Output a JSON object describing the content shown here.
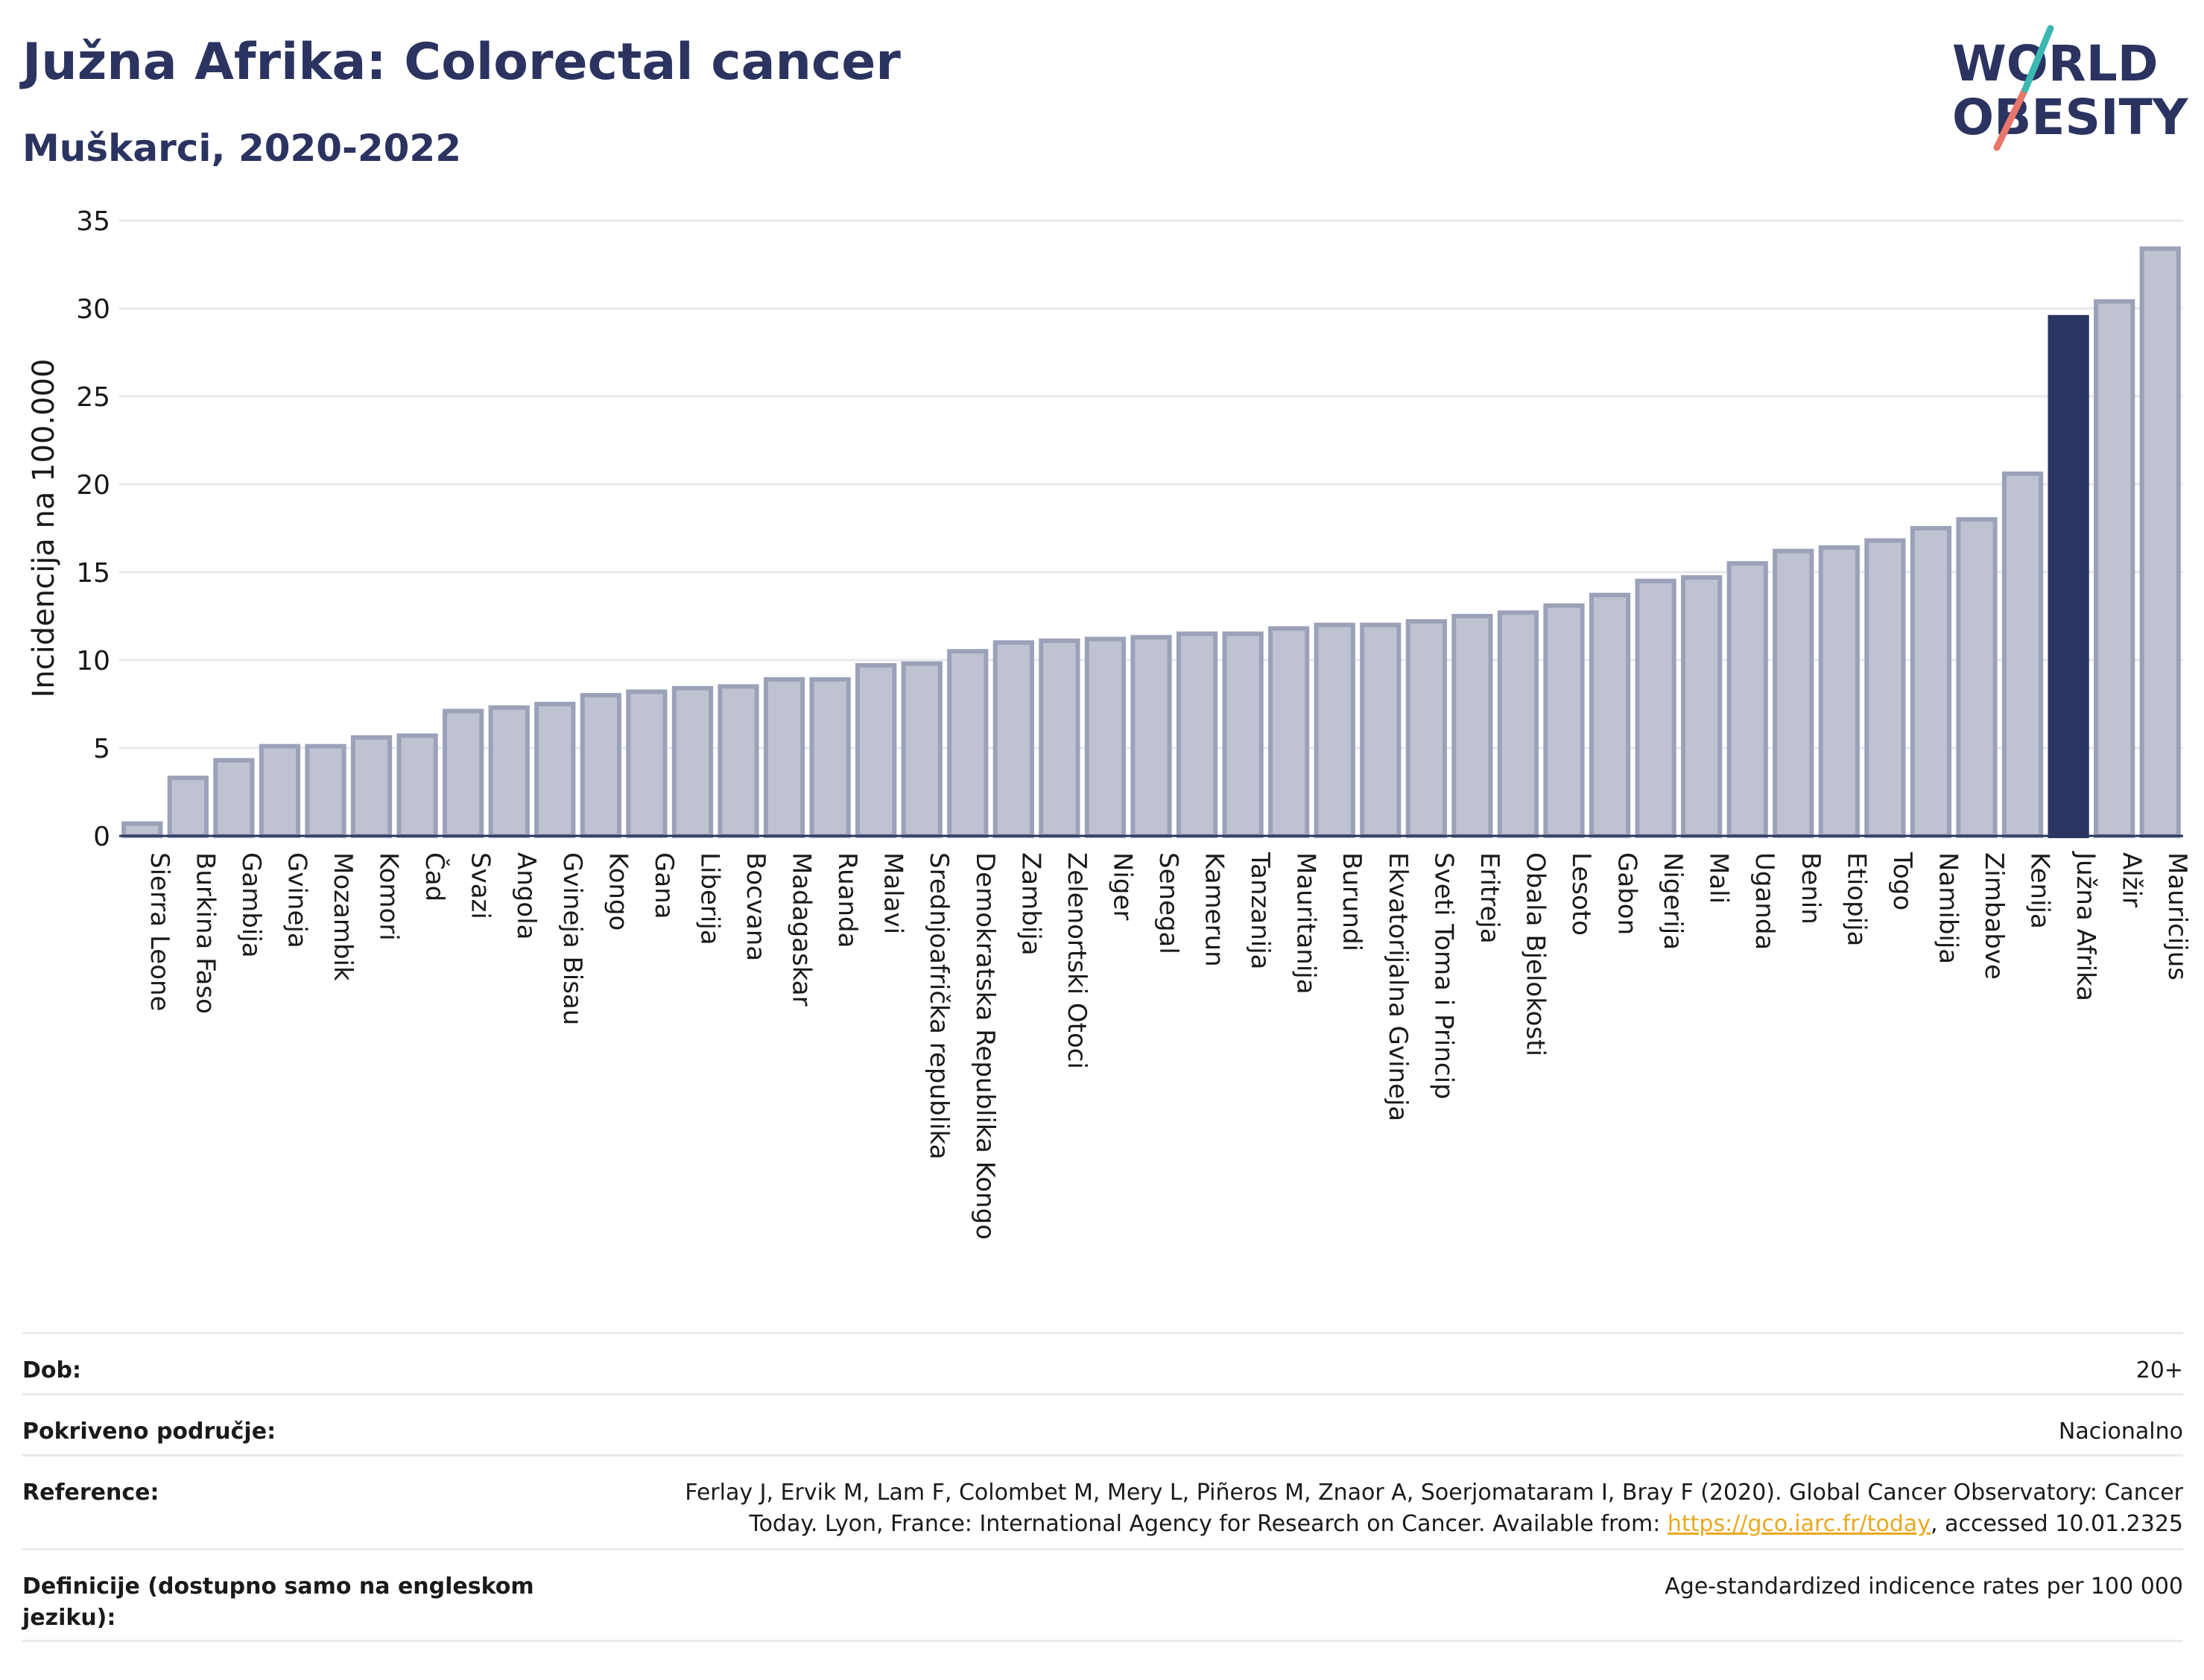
{
  "header": {
    "title": "Južna Afrika: Colorectal cancer",
    "subtitle": "Muškarci, 2020-2022"
  },
  "logo": {
    "line1": "WORLD",
    "line2": "OBESITY"
  },
  "colors": {
    "bar": "#bfc3d1",
    "bar_stroke": "#9ba1b8",
    "highlight": "#2b3561",
    "title": "#2b3360",
    "grid": "#e6e8ee",
    "link": "#e8a920"
  },
  "chart_data": {
    "type": "bar",
    "title": "Južna Afrika: Colorectal cancer",
    "ylabel": "Incidencija na 100.000",
    "xlabel": "",
    "ylim": [
      0,
      35
    ],
    "yticks": [
      0,
      5,
      10,
      15,
      20,
      25,
      30,
      35
    ],
    "grid": true,
    "highlight": "Južna Afrika",
    "categories": [
      "Sierra Leone",
      "Burkina Faso",
      "Gambija",
      "Gvineja",
      "Mozambik",
      "Komori",
      "Čad",
      "Svazi",
      "Angola",
      "Gvineja Bisau",
      "Kongo",
      "Gana",
      "Liberija",
      "Bocvana",
      "Madagaskar",
      "Ruanda",
      "Malavi",
      "Srednjoafrička republika",
      "Demokratska Republika Kongo",
      "Zambija",
      "Zelenortski Otoci",
      "Niger",
      "Senegal",
      "Kamerun",
      "Tanzanija",
      "Mauritanija",
      "Burundi",
      "Ekvatorijalna Gvineja",
      "Sveti Toma i Princip",
      "Eritreja",
      "Obala Bjelokosti",
      "Lesoto",
      "Gabon",
      "Nigerija",
      "Mali",
      "Uganda",
      "Benin",
      "Etiopija",
      "Togo",
      "Namibija",
      "Zimbabve",
      "Kenija",
      "Južna Afrika",
      "Alžir",
      "Mauricijus"
    ],
    "values": [
      0.7,
      3.3,
      4.3,
      5.1,
      5.1,
      5.6,
      5.7,
      7.1,
      7.3,
      7.5,
      8.0,
      8.2,
      8.4,
      8.5,
      8.9,
      8.9,
      9.7,
      9.8,
      10.5,
      11.0,
      11.1,
      11.2,
      11.3,
      11.5,
      11.5,
      11.8,
      12.0,
      12.0,
      12.2,
      12.5,
      12.7,
      13.1,
      13.7,
      14.5,
      14.7,
      15.5,
      16.2,
      16.4,
      16.8,
      17.5,
      18.0,
      20.6,
      29.5,
      30.4,
      33.4
    ]
  },
  "meta": {
    "age_label": "Dob:",
    "age_value": "20+",
    "coverage_label": "Pokriveno područje:",
    "coverage_value": "Nacionalno",
    "reference_label": "Reference:",
    "reference_text_1": "Ferlay J, Ervik M, Lam F, Colombet M, Mery L, Piñeros M, Znaor A, Soerjomataram I, Bray F (2020). Global Cancer Observatory: Cancer",
    "reference_text_2": "Today. Lyon, France: International Agency for Research on Cancer. Available from: ",
    "reference_link": "https://gco.iarc.fr/today",
    "reference_text_3": ", accessed 10.01.2325",
    "definitions_label": "Definicije (dostupno samo na engleskom jeziku):",
    "definitions_value": "Age-standardized indicence rates per 100 000"
  }
}
